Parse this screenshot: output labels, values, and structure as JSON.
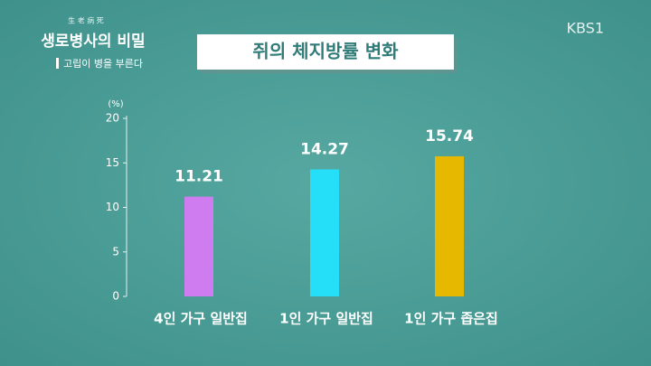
{
  "overlay": {
    "hanja": "生 老 病 死",
    "program_title": "생로병사의 비밀",
    "episode": "고립이 병을 부른다",
    "channel": "KBS1"
  },
  "chart_data": {
    "type": "bar",
    "title": "쥐의 체지방률 변화",
    "y_label": "(%)",
    "categories": [
      "4인 가구 일반집",
      "1인 가구 일반집",
      "1인 가구 좁은집"
    ],
    "values": [
      11.21,
      14.27,
      15.74
    ],
    "colors": [
      "#cf7cf0",
      "#25def8",
      "#e6b800"
    ],
    "ylim": [
      0,
      20
    ],
    "yticks": [
      0,
      5,
      10,
      15,
      20
    ],
    "grid": false
  }
}
